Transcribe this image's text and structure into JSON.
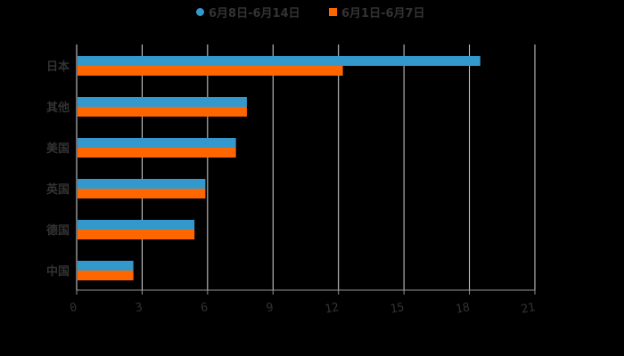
{
  "chart_data": {
    "type": "bar",
    "orientation": "horizontal",
    "title": "",
    "xlabel": "",
    "ylabel": "",
    "categories": [
      "日本",
      "其他",
      "美国",
      "英国",
      "德国",
      "中国"
    ],
    "series": [
      {
        "name": "6月8日-6月14日",
        "color": "#3399cc",
        "values": [
          18.5,
          7.8,
          7.3,
          5.9,
          5.4,
          2.6
        ]
      },
      {
        "name": "6月1日-6月7日",
        "color": "#ff6600",
        "values": [
          12.2,
          7.8,
          7.3,
          5.9,
          5.4,
          2.6
        ]
      }
    ],
    "xlim": [
      0,
      21
    ],
    "xticks": [
      0,
      3,
      6,
      9,
      12,
      15,
      18,
      21
    ],
    "grid": "vertical",
    "legend_position": "top"
  },
  "legend": {
    "items": [
      {
        "label": "6月8日-6月14日",
        "color": "#3399cc",
        "marker": "circle"
      },
      {
        "label": "6月1日-6月7日",
        "color": "#ff6600",
        "marker": "square"
      }
    ]
  },
  "colors": {
    "background": "#000000",
    "grid": "#dddddd",
    "axis": "#999999",
    "label": "#333333"
  }
}
